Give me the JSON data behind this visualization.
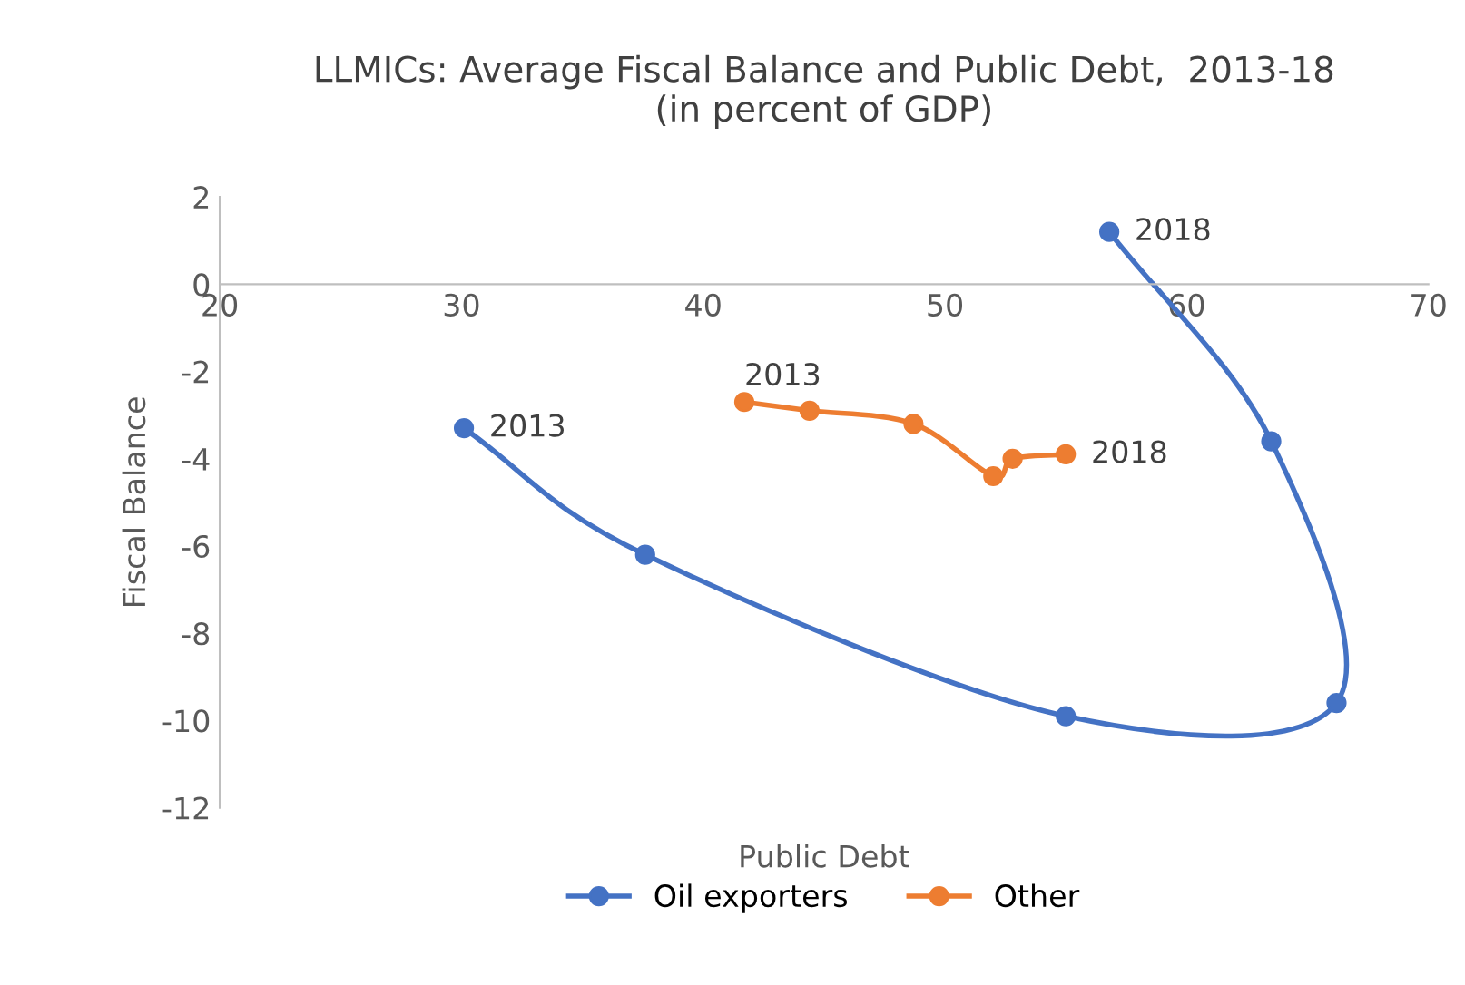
{
  "chart_data": {
    "type": "line",
    "title": "LLMICs: Average Fiscal Balance and Public Debt,  2013-18\n(in percent of GDP)",
    "xlabel": "Public Debt",
    "ylabel": "Fiscal Balance",
    "series": [
      {
        "name": "Oil exporters",
        "color": "#4472c4",
        "x": [
          30.1,
          37.6,
          55.0,
          66.2,
          63.5,
          56.8
        ],
        "values": [
          -3.3,
          -6.2,
          -9.9,
          -9.6,
          -3.6,
          1.2
        ]
      },
      {
        "name": "Other",
        "color": "#ed7d31",
        "x": [
          41.7,
          44.4,
          48.7,
          52.0,
          52.8,
          55.0
        ],
        "values": [
          -2.7,
          -2.9,
          -3.2,
          -4.4,
          -4.0,
          -3.9
        ]
      }
    ],
    "annotations": [
      {
        "text": "2013",
        "x": 30.1,
        "y": -3.3
      },
      {
        "text": "2018",
        "x": 56.8,
        "y": 1.2
      },
      {
        "text": "2013",
        "x": 41.7,
        "y": -2.7
      },
      {
        "text": "2018",
        "x": 55.0,
        "y": -3.9
      }
    ],
    "xlim": [
      20,
      70
    ],
    "xticks": [
      20,
      30,
      40,
      50,
      60,
      70
    ],
    "ylim": [
      -12,
      2
    ],
    "yticks": [
      -12,
      -10,
      -8,
      -6,
      -4,
      -2,
      0,
      2
    ],
    "grid": false,
    "legend": "bottom",
    "marker": "circle",
    "line_style": "solid"
  }
}
